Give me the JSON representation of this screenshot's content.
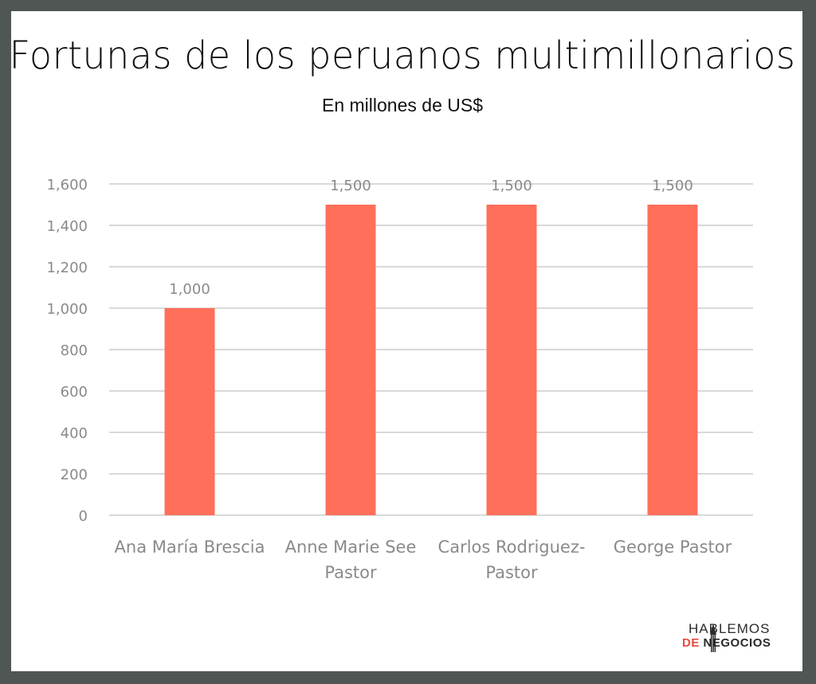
{
  "title": "Fortunas de los peruanos multimillonarios",
  "subtitle": "En millones de US$",
  "colors": {
    "bar": "#ff6f59",
    "grid": "#d9d9d9",
    "axis_text": "#8a8a8a",
    "frame": "#4f5654"
  },
  "logo": {
    "line1": "HABLEMOS",
    "line2_a": "DE",
    "line2_b": "NEGOCIOS"
  },
  "chart_data": {
    "type": "bar",
    "title": "Fortunas de los peruanos multimillonarios",
    "subtitle": "En millones de US$",
    "categories": [
      [
        "Ana María Brescia"
      ],
      [
        "Anne Marie See",
        "Pastor"
      ],
      [
        "Carlos Rodriguez-",
        "Pastor"
      ],
      [
        "George Pastor"
      ]
    ],
    "values": [
      1000,
      1500,
      1500,
      1500
    ],
    "value_labels": [
      "1,000",
      "1,500",
      "1,500",
      "1,500"
    ],
    "yticks": [
      "0",
      "200",
      "400",
      "600",
      "800",
      "1,000",
      "1,200",
      "1,400",
      "1,600"
    ],
    "ylim": [
      0,
      1600
    ],
    "grid": true,
    "legend": "none"
  }
}
